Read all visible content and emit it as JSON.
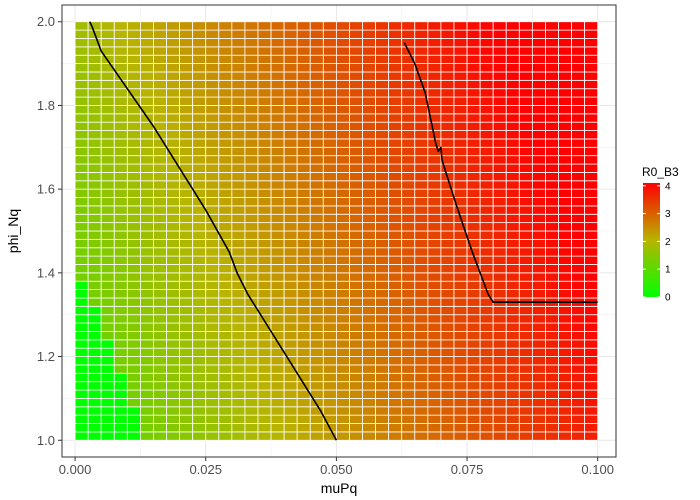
{
  "chart_data": {
    "type": "heatmap",
    "title": "",
    "xlabel": "muPq",
    "ylabel": "phi_Nq",
    "xlim": [
      -0.0025,
      0.1035
    ],
    "ylim": [
      0.96,
      2.04
    ],
    "x_ticks": [
      0.0,
      0.025,
      0.05,
      0.075,
      0.1
    ],
    "x_tick_labels": [
      "0.000",
      "0.025",
      "0.050",
      "0.075",
      "0.100"
    ],
    "y_ticks": [
      1.0,
      1.2,
      1.4,
      1.6,
      1.8,
      2.0
    ],
    "y_tick_labels": [
      "1.0",
      "1.2",
      "1.4",
      "1.6",
      "1.8",
      "2.0"
    ],
    "grid": true,
    "tile_grid": {
      "x_min": 0.0,
      "x_max": 0.1,
      "x_count": 40,
      "y_min": 1.0,
      "y_max": 2.0,
      "y_count": 50
    },
    "fill_model": {
      "description": "R0_B3 increases with muPq and phi_Nq",
      "r0_min": 0.0,
      "r0_max": 4.1
    },
    "zero_region_max_x_by_y": [
      {
        "y_max": 1.08,
        "x_max": 0.0135
      },
      {
        "y_max": 1.16,
        "x_max": 0.011
      },
      {
        "y_max": 1.24,
        "x_max": 0.0085
      },
      {
        "y_max": 1.32,
        "x_max": 0.006
      },
      {
        "y_max": 1.38,
        "x_max": 0.0035
      },
      {
        "y_max": 1.46,
        "x_max": 0.001
      }
    ],
    "legend": {
      "title": "R0_B3",
      "position": "right",
      "breaks": [
        0,
        1,
        2,
        3,
        4
      ],
      "labels": [
        "0",
        "1",
        "2",
        "3",
        "4"
      ],
      "low_color": "#00FF00",
      "high_color": "#FF0000"
    },
    "series": [
      {
        "color": "#000000",
        "x": [
          0.0028,
          0.0032,
          0.0038,
          0.005,
          0.01,
          0.015,
          0.02,
          0.025,
          0.0295,
          0.031,
          0.033,
          0.037,
          0.042,
          0.047,
          0.05
        ],
        "y": [
          2.0,
          1.99,
          1.97,
          1.93,
          1.84,
          1.75,
          1.65,
          1.55,
          1.45,
          1.4,
          1.35,
          1.27,
          1.17,
          1.07,
          1.0
        ]
      },
      {
        "color": "#000000",
        "x": [
          0.063,
          0.065,
          0.067,
          0.069,
          0.0695,
          0.07,
          0.0702,
          0.0707,
          0.073,
          0.076,
          0.079,
          0.08,
          0.085,
          0.09,
          0.1
        ],
        "y": [
          1.95,
          1.9,
          1.83,
          1.71,
          1.69,
          1.7,
          1.67,
          1.65,
          1.56,
          1.45,
          1.35,
          1.33,
          1.33,
          1.33,
          1.33
        ]
      }
    ]
  }
}
